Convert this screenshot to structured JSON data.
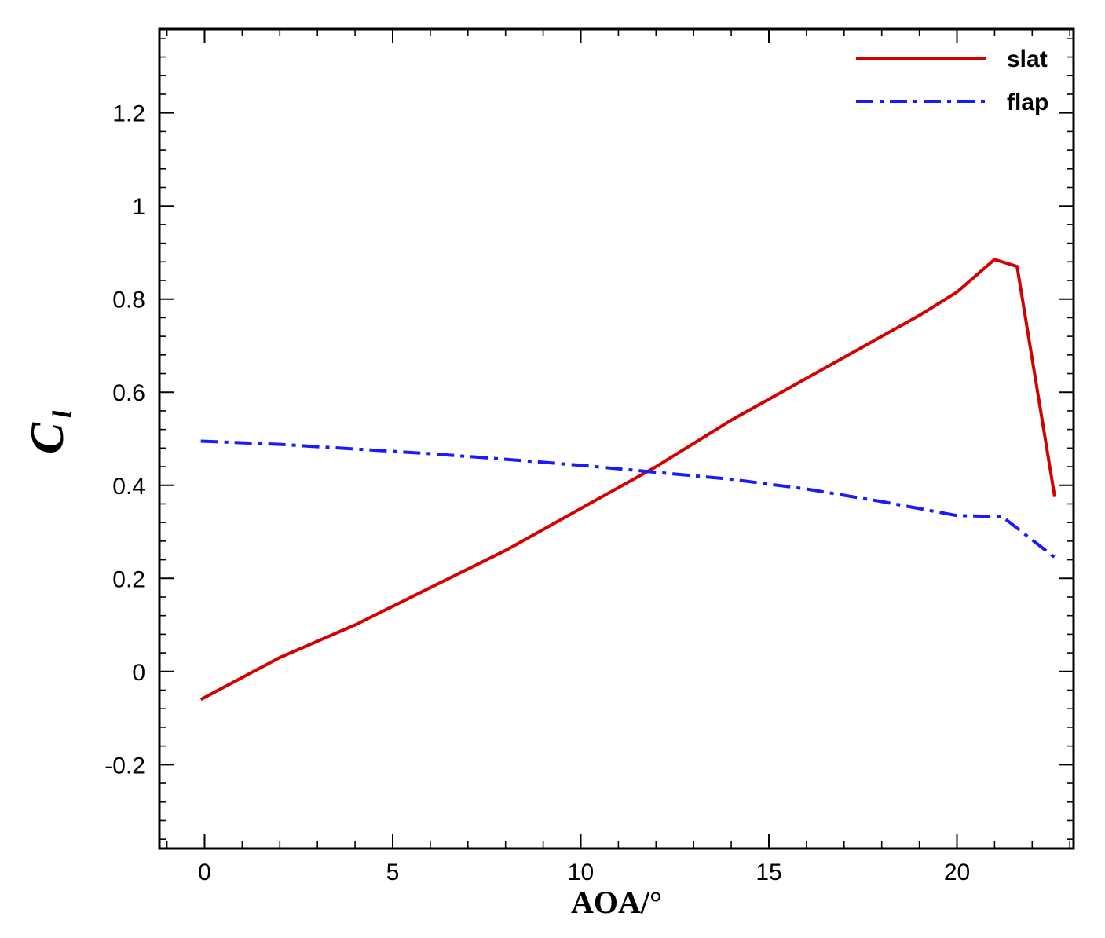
{
  "chart_data": {
    "type": "line",
    "xlabel": "AOA/°",
    "ylabel": "C",
    "ylabel_subscript": "l",
    "xlim": [
      -1.2,
      23.1
    ],
    "ylim": [
      -0.38,
      1.38
    ],
    "x_ticks": [
      0,
      5,
      10,
      15,
      20
    ],
    "x_tick_labels": [
      "0",
      "5",
      "10",
      "15",
      "20"
    ],
    "x_minor_step": 1,
    "y_ticks": [
      -0.2,
      0,
      0.2,
      0.4,
      0.6,
      0.8,
      1,
      1.2
    ],
    "y_tick_labels": [
      "-0.2",
      "0",
      "0.2",
      "0.4",
      "0.6",
      "0.8",
      "1",
      "1.2"
    ],
    "y_minor_step": 0.04,
    "grid": false,
    "legend_position": "top-right",
    "series": [
      {
        "name": "slat",
        "color": "#d40000",
        "style": "solid",
        "x": [
          -0.1,
          2,
          4,
          6,
          8,
          10,
          12,
          14,
          16,
          18,
          19,
          20,
          21,
          21.6,
          22.6
        ],
        "y": [
          -0.06,
          0.03,
          0.1,
          0.18,
          0.26,
          0.35,
          0.44,
          0.54,
          0.63,
          0.72,
          0.765,
          0.815,
          0.885,
          0.87,
          0.375
        ]
      },
      {
        "name": "flap",
        "color": "#1a1aff",
        "style": "dashdot",
        "x": [
          -0.1,
          2,
          4,
          6,
          8,
          10,
          12,
          14,
          16,
          18,
          20,
          21.2,
          22.6
        ],
        "y": [
          0.495,
          0.488,
          0.478,
          0.468,
          0.456,
          0.443,
          0.428,
          0.413,
          0.392,
          0.365,
          0.335,
          0.333,
          0.245
        ]
      }
    ]
  }
}
